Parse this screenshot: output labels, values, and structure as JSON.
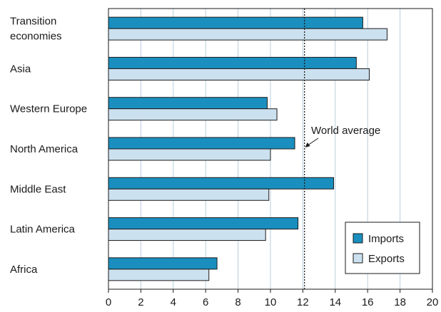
{
  "chart_data": {
    "type": "bar",
    "orientation": "horizontal",
    "title": "",
    "xlabel": "",
    "ylabel": "",
    "categories": [
      [
        "Transition",
        "economies"
      ],
      [
        "Asia"
      ],
      [
        "Western Europe"
      ],
      [
        "North America"
      ],
      [
        "Middle East"
      ],
      [
        "Latin America"
      ],
      [
        "Africa"
      ]
    ],
    "series": [
      {
        "name": "Imports",
        "color": "#1a8fbf",
        "values": [
          15.7,
          15.3,
          9.8,
          11.5,
          13.9,
          11.7,
          6.7
        ]
      },
      {
        "name": "Exports",
        "color": "#cce1ef",
        "values": [
          17.2,
          16.1,
          10.4,
          10.0,
          9.9,
          9.7,
          6.2
        ]
      }
    ],
    "xlim": [
      0,
      20
    ],
    "x_ticks": [
      0,
      2,
      4,
      6,
      8,
      10,
      12,
      14,
      16,
      18,
      20
    ],
    "grid": true,
    "reference_line": {
      "value": 12.1,
      "label": "World average",
      "style": "dotted"
    },
    "legend_position": "bottom-right"
  }
}
